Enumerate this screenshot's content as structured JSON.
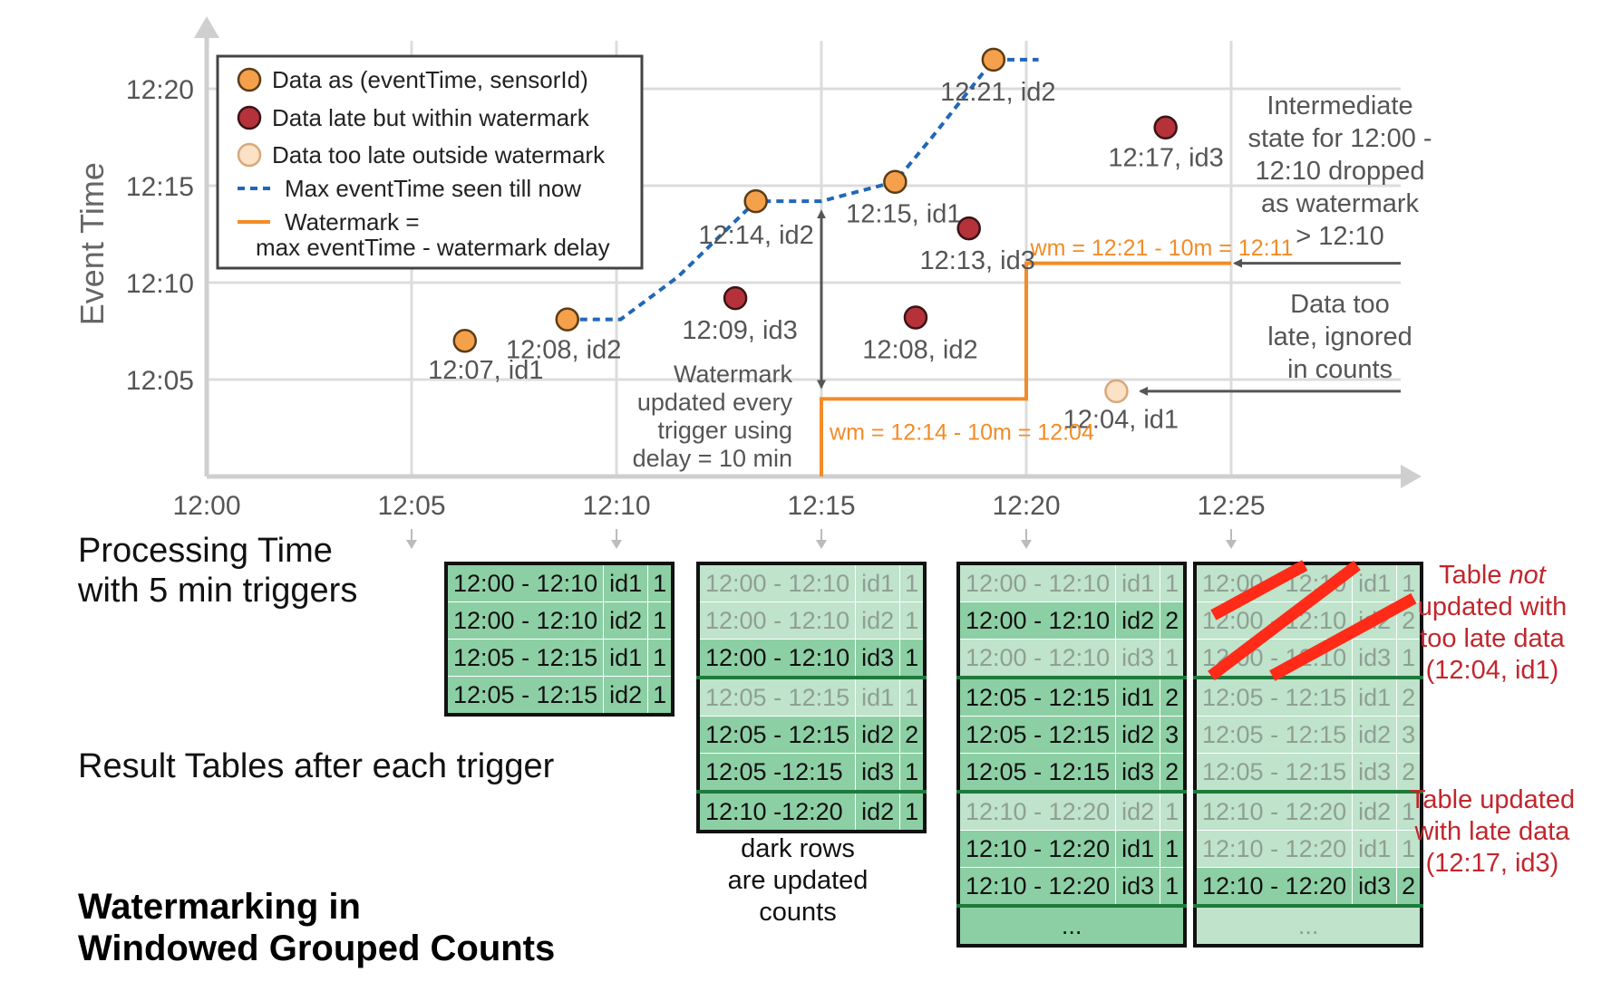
{
  "chart": {
    "ylabel": "Event Time",
    "y_ticks": [
      "12:05",
      "12:10",
      "12:15",
      "12:20"
    ],
    "x_ticks": [
      "12:00",
      "12:05",
      "12:10",
      "12:15",
      "12:20",
      "12:25"
    ],
    "legend": [
      {
        "kind": "dot-orange",
        "label": "Data as (eventTime, sensorId)"
      },
      {
        "kind": "dot-red",
        "label": "Data late but within watermark"
      },
      {
        "kind": "dot-pale",
        "label": "Data too late outside watermark"
      },
      {
        "kind": "dash-blue",
        "label": "Max eventTime seen till now"
      },
      {
        "kind": "line-orange",
        "label": "Watermark =",
        "label2": "max eventTime - watermark delay"
      }
    ],
    "points": [
      {
        "kind": "orange",
        "x_min": 6.3,
        "y_min": 7,
        "label": "12:07, id1",
        "lx": 5.4,
        "ly": 5.05
      },
      {
        "kind": "orange",
        "x_min": 8.8,
        "y_min": 8.1,
        "label": "12:08, id2",
        "lx": 7.3,
        "ly": 6.1
      },
      {
        "kind": "red",
        "x_min": 12.9,
        "y_min": 9.2,
        "label": "12:09, id3",
        "lx": 11.6,
        "ly": 7.1
      },
      {
        "kind": "orange",
        "x_min": 13.4,
        "y_min": 14.2,
        "label": "12:14, id2",
        "lx": 12.0,
        "ly": 12.0
      },
      {
        "kind": "orange",
        "x_min": 16.8,
        "y_min": 15.2,
        "label": "12:15, id1",
        "lx": 15.6,
        "ly": 13.1
      },
      {
        "kind": "red",
        "x_min": 17.3,
        "y_min": 8.2,
        "label": "12:08, id2",
        "lx": 16.0,
        "ly": 6.1
      },
      {
        "kind": "red",
        "x_min": 18.6,
        "y_min": 12.8,
        "label": "12:13, id3",
        "lx": 17.4,
        "ly": 10.7
      },
      {
        "kind": "orange",
        "x_min": 19.2,
        "y_min": 21.5,
        "label": "12:21, id2",
        "lx": 17.9,
        "ly": 19.4
      },
      {
        "kind": "pale",
        "x_min": 22.2,
        "y_min": 4.4,
        "label": "12:04, id1",
        "lx": 20.9,
        "ly": 2.5
      },
      {
        "kind": "red",
        "x_min": 23.4,
        "y_min": 18.0,
        "label": "12:17, id3",
        "lx": 22.0,
        "ly": 16.0
      }
    ],
    "max_eventtime_line": [
      [
        8.8,
        8.1
      ],
      [
        10.1,
        8.1
      ],
      [
        11.5,
        10.3
      ],
      [
        13.4,
        14.2
      ],
      [
        15.0,
        14.2
      ],
      [
        16.8,
        15.2
      ],
      [
        17.7,
        17.5
      ],
      [
        19.2,
        21.5
      ],
      [
        20.3,
        21.5
      ]
    ],
    "watermark_line": [
      [
        15.0,
        0
      ],
      [
        15.0,
        4.0
      ],
      [
        20.0,
        4.0
      ],
      [
        20.0,
        11.0
      ],
      [
        25.0,
        11.0
      ]
    ],
    "wm_label_1": "wm = 12:14 - 10m = 12:04",
    "wm_label_2": "wm = 12:21 - 10m = 12:11",
    "watermark_note": [
      "Watermark",
      "updated every",
      "trigger using",
      "delay = 10 min"
    ],
    "right_note_1": [
      "Intermediate",
      "state for 12:00 -",
      "12:10 dropped",
      "as watermark",
      "> 12:10"
    ],
    "right_note_2": [
      "Data too",
      "late, ignored",
      "in counts"
    ],
    "trigger_minutes": [
      5,
      10,
      15,
      20,
      25
    ]
  },
  "left_labels": {
    "processing_line1": "Processing Time",
    "processing_line2": "with 5 min triggers",
    "result_tables": "Result Tables after each trigger",
    "title_line1": "Watermarking in",
    "title_line2": "Windowed Grouped Counts"
  },
  "tables": [
    {
      "rows": [
        {
          "w": "12:00 - 12:10",
          "id": "id1",
          "c": "1",
          "state": "dark"
        },
        {
          "w": "12:00 - 12:10",
          "id": "id2",
          "c": "1",
          "state": "dark"
        },
        {
          "w": "12:05 - 12:15",
          "id": "id1",
          "c": "1",
          "state": "dark"
        },
        {
          "w": "12:05 - 12:15",
          "id": "id2",
          "c": "1",
          "state": "dark"
        }
      ]
    },
    {
      "rows": [
        {
          "w": "12:00 - 12:10",
          "id": "id1",
          "c": "1",
          "state": "faded"
        },
        {
          "w": "12:00 - 12:10",
          "id": "id2",
          "c": "1",
          "state": "faded"
        },
        {
          "w": "12:00 - 12:10",
          "id": "id3",
          "c": "1",
          "state": "dark"
        },
        {
          "w": "12:05 - 12:15",
          "id": "id1",
          "c": "1",
          "state": "faded",
          "group": true
        },
        {
          "w": "12:05 - 12:15",
          "id": "id2",
          "c": "2",
          "state": "dark"
        },
        {
          "w": "12:05 -12:15",
          "id": "id3",
          "c": "1",
          "state": "dark"
        },
        {
          "w": "12:10 -12:20",
          "id": "id2",
          "c": "1",
          "state": "dark",
          "group": true
        }
      ],
      "caption": [
        "dark rows",
        "are updated",
        "counts"
      ]
    },
    {
      "rows": [
        {
          "w": "12:00 - 12:10",
          "id": "id1",
          "c": "1",
          "state": "faded"
        },
        {
          "w": "12:00 - 12:10",
          "id": "id2",
          "c": "2",
          "state": "dark"
        },
        {
          "w": "12:00 - 12:10",
          "id": "id3",
          "c": "1",
          "state": "faded"
        },
        {
          "w": "12:05 - 12:15",
          "id": "id1",
          "c": "2",
          "state": "dark",
          "group": true
        },
        {
          "w": "12:05 - 12:15",
          "id": "id2",
          "c": "3",
          "state": "dark"
        },
        {
          "w": "12:05 - 12:15",
          "id": "id3",
          "c": "2",
          "state": "dark"
        },
        {
          "w": "12:10 - 12:20",
          "id": "id2",
          "c": "1",
          "state": "faded",
          "group": true
        },
        {
          "w": "12:10 - 12:20",
          "id": "id1",
          "c": "1",
          "state": "dark"
        },
        {
          "w": "12:10 - 12:20",
          "id": "id3",
          "c": "1",
          "state": "dark"
        },
        {
          "w": "...",
          "id": "",
          "c": "",
          "state": "dark",
          "group": true
        }
      ]
    },
    {
      "rows": [
        {
          "w": "12:00 - 12:10",
          "id": "id1",
          "c": "1",
          "state": "faded"
        },
        {
          "w": "12:00 - 12:10",
          "id": "id2",
          "c": "2",
          "state": "faded"
        },
        {
          "w": "12:00 - 12:10",
          "id": "id3",
          "c": "1",
          "state": "faded"
        },
        {
          "w": "12:05 - 12:15",
          "id": "id1",
          "c": "2",
          "state": "faded",
          "group": true
        },
        {
          "w": "12:05 - 12:15",
          "id": "id2",
          "c": "3",
          "state": "faded"
        },
        {
          "w": "12:05 - 12:15",
          "id": "id3",
          "c": "2",
          "state": "faded"
        },
        {
          "w": "12:10 - 12:20",
          "id": "id2",
          "c": "1",
          "state": "faded",
          "group": true
        },
        {
          "w": "12:10 - 12:20",
          "id": "id1",
          "c": "1",
          "state": "faded"
        },
        {
          "w": "12:10 - 12:20",
          "id": "id3",
          "c": "2",
          "state": "dark"
        },
        {
          "w": "...",
          "id": "",
          "c": "",
          "state": "faded",
          "group": true
        }
      ]
    }
  ],
  "red_notes": {
    "note1_pre": "Table ",
    "note1_em": "not",
    "note1_rest": [
      "updated with",
      "too late data",
      "(12:04, id1)"
    ],
    "note2": [
      "Table updated",
      "with late data",
      "(12:17, id3)"
    ]
  },
  "colors": {
    "orange": "#f5a04a",
    "red": "#b5323a",
    "pale": "#fbe1c6",
    "blue": "#2167b7",
    "watermark": "#f28c28",
    "grid": "#dcdcdc",
    "axis": "#cfcfcf",
    "arrow": "#555555",
    "strike": "#ff2a17"
  }
}
